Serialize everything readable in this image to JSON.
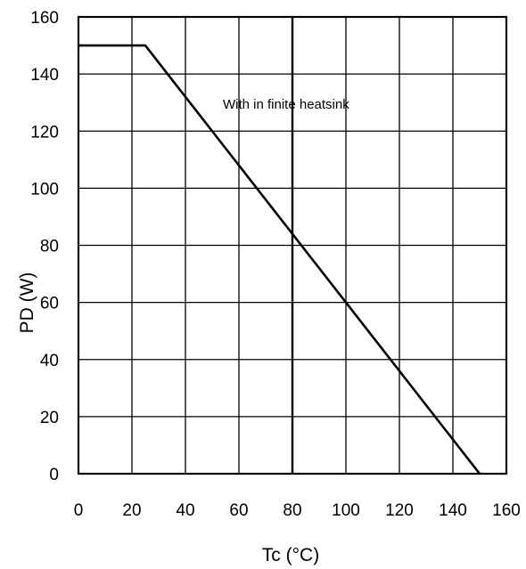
{
  "chart_data": {
    "type": "line",
    "title": "",
    "xlabel": "Tc (°C)",
    "ylabel": "PD (W)",
    "xlim": [
      0,
      160
    ],
    "ylim": [
      0,
      160
    ],
    "x_ticks": [
      0,
      20,
      40,
      60,
      80,
      100,
      120,
      140,
      160
    ],
    "y_ticks": [
      0,
      20,
      40,
      60,
      80,
      100,
      120,
      140,
      160
    ],
    "x_tick_labels": [
      "0",
      "20",
      "40",
      "60",
      "80",
      "100",
      "120",
      "140",
      "160"
    ],
    "y_tick_labels": [
      "0",
      "20",
      "40",
      "60",
      "80",
      "100",
      "120",
      "140",
      "160"
    ],
    "grid": true,
    "annotation": "With in finite heatsink",
    "series": [
      {
        "x": [
          0,
          25,
          150
        ],
        "y": [
          150,
          150,
          0
        ]
      }
    ],
    "colors": {
      "line": "#000000",
      "grid": "#000000",
      "background": "#ffffff"
    }
  }
}
